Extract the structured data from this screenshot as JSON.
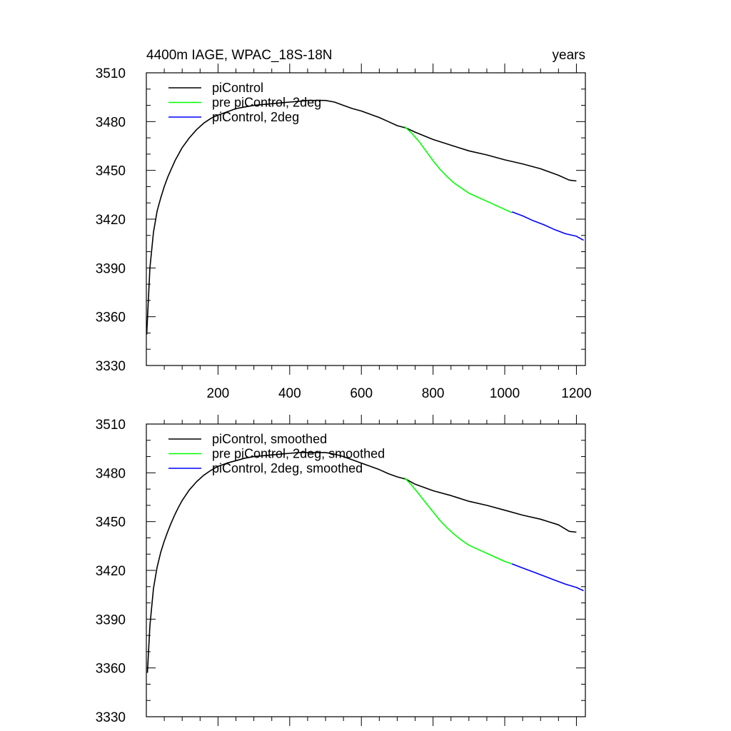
{
  "chart_data": [
    {
      "type": "line",
      "title_left": "4400m IAGE, WPAC_18S-18N",
      "title_right": "years",
      "xlim": [
        0,
        1225
      ],
      "ylim": [
        3330,
        3510
      ],
      "xticks": [
        200,
        400,
        600,
        800,
        1000,
        1200
      ],
      "xtick_labels": [
        "200",
        "400",
        "600",
        "800",
        "1000",
        "1200"
      ],
      "yticks": [
        3330,
        3360,
        3390,
        3420,
        3450,
        3480,
        3510
      ],
      "ytick_labels": [
        "3330",
        "3360",
        "3390",
        "3420",
        "3450",
        "3480",
        "3510"
      ],
      "legend_location": "top-left",
      "series": [
        {
          "name": "piControl",
          "color": "#000000",
          "x": [
            1,
            10,
            20,
            30,
            40,
            50,
            60,
            70,
            80,
            90,
            100,
            120,
            140,
            160,
            180,
            200,
            225,
            250,
            275,
            300,
            325,
            350,
            375,
            400,
            425,
            450,
            475,
            500,
            525,
            550,
            575,
            600,
            625,
            650,
            675,
            700,
            725,
            750,
            800,
            850,
            900,
            950,
            1000,
            1050,
            1100,
            1150,
            1180,
            1200
          ],
          "y": [
            3349,
            3390,
            3412,
            3425,
            3433,
            3440,
            3446,
            3451,
            3456,
            3460,
            3464,
            3470,
            3475,
            3479,
            3482,
            3484,
            3486,
            3488,
            3489,
            3490,
            3490.5,
            3491,
            3491.5,
            3492,
            3492.5,
            3493,
            3493,
            3493,
            3492,
            3490,
            3488,
            3486.5,
            3484.5,
            3482.5,
            3480,
            3477.5,
            3476,
            3473.5,
            3469,
            3465.5,
            3462,
            3459.5,
            3456.5,
            3454,
            3451,
            3447,
            3444,
            3443.5
          ]
        },
        {
          "name": "pre piControl, 2deg",
          "color": "#00ff00",
          "x": [
            720,
            740,
            760,
            780,
            800,
            820,
            840,
            860,
            880,
            900,
            920,
            940,
            960,
            980,
            1000,
            1020
          ],
          "y": [
            3477,
            3473,
            3468,
            3462,
            3456,
            3450.5,
            3446,
            3442,
            3439,
            3436,
            3434,
            3432,
            3430,
            3428,
            3426,
            3424
          ]
        },
        {
          "name": "piControl, 2deg",
          "color": "#0000ff",
          "x": [
            1020,
            1050,
            1080,
            1110,
            1140,
            1170,
            1200,
            1220
          ],
          "y": [
            3424.5,
            3422,
            3419,
            3416.5,
            3413.5,
            3411,
            3409.5,
            3407
          ]
        }
      ]
    },
    {
      "type": "line",
      "xlim": [
        0,
        1225
      ],
      "ylim": [
        3330,
        3510
      ],
      "xticks": [
        200,
        400,
        600,
        800,
        1000,
        1200
      ],
      "yticks": [
        3330,
        3360,
        3390,
        3420,
        3450,
        3480,
        3510
      ],
      "ytick_labels": [
        "3330",
        "3360",
        "3390",
        "3420",
        "3450",
        "3480",
        "3510"
      ],
      "legend_location": "top-left",
      "series": [
        {
          "name": "piControl, smoothed",
          "color": "#000000",
          "x": [
            3,
            10,
            20,
            30,
            40,
            50,
            60,
            70,
            80,
            90,
            100,
            120,
            140,
            160,
            180,
            200,
            225,
            250,
            275,
            300,
            325,
            350,
            375,
            400,
            425,
            450,
            475,
            500,
            525,
            550,
            575,
            600,
            625,
            650,
            675,
            700,
            725,
            750,
            800,
            850,
            900,
            950,
            1000,
            1050,
            1100,
            1150,
            1180,
            1200
          ],
          "y": [
            3357,
            3386,
            3409,
            3422,
            3431,
            3438,
            3444,
            3449.5,
            3454.5,
            3459,
            3463,
            3469.5,
            3474.5,
            3478.5,
            3481.5,
            3484,
            3486,
            3487.5,
            3489,
            3490,
            3490.5,
            3491,
            3491.5,
            3492,
            3492.5,
            3492.5,
            3492.5,
            3492.5,
            3491.5,
            3490,
            3488,
            3486,
            3484,
            3482,
            3479.5,
            3477.5,
            3476,
            3473,
            3469,
            3466,
            3462.5,
            3460,
            3457,
            3454,
            3451.5,
            3448,
            3444,
            3443.5
          ]
        },
        {
          "name": "pre piControl, 2deg, smoothed",
          "color": "#00ff00",
          "x": [
            720,
            740,
            760,
            780,
            800,
            820,
            840,
            860,
            880,
            900,
            920,
            940,
            960,
            980,
            1000,
            1020
          ],
          "y": [
            3477,
            3472.5,
            3467,
            3461.5,
            3456,
            3450.5,
            3446,
            3442,
            3438.5,
            3435.5,
            3433.5,
            3431.5,
            3429.5,
            3427.5,
            3425.5,
            3424
          ]
        },
        {
          "name": "piControl, 2deg, smoothed",
          "color": "#0000ff",
          "x": [
            1020,
            1050,
            1080,
            1110,
            1140,
            1170,
            1200,
            1220
          ],
          "y": [
            3424,
            3421.5,
            3419,
            3416.5,
            3414,
            3411.5,
            3409.5,
            3407.5
          ]
        }
      ]
    }
  ]
}
